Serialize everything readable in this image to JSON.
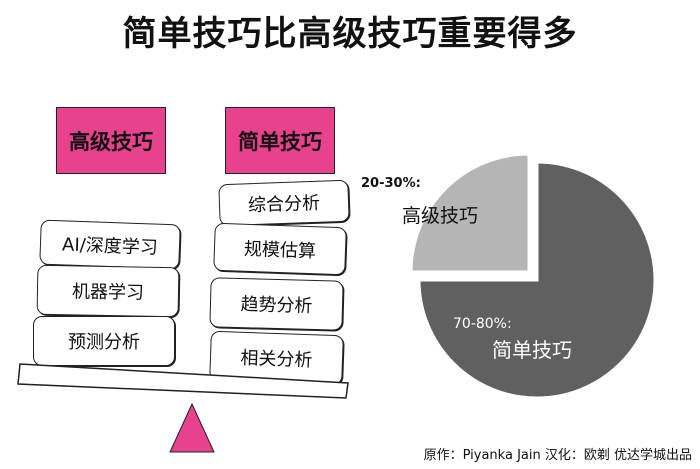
{
  "title": "简单技巧比高级技巧重要得多",
  "left_header": "高级技巧",
  "right_header": "简单技巧",
  "left_items": [
    "AI/深度学习",
    "机器学习",
    "预测分析"
  ],
  "right_items": [
    "综合分析",
    "规模估算",
    "趋势分析",
    "相关分析"
  ],
  "colors": {
    "accent": "#e8418d",
    "pie_dark": "#606060",
    "pie_light": "#b5b5b5"
  },
  "pie": {
    "small_pct": "20-30%:",
    "small_label": "高级技巧",
    "big_pct": "70-80%:",
    "big_label": "简单技巧"
  },
  "chart_data": {
    "type": "pie",
    "categories": [
      "简单技巧",
      "高级技巧"
    ],
    "values": [
      75,
      25
    ],
    "labels": [
      "70-80%:",
      "20-30%:"
    ]
  },
  "credit": "原作：Piyanka Jain   汉化：欧剃   优达学城出品"
}
